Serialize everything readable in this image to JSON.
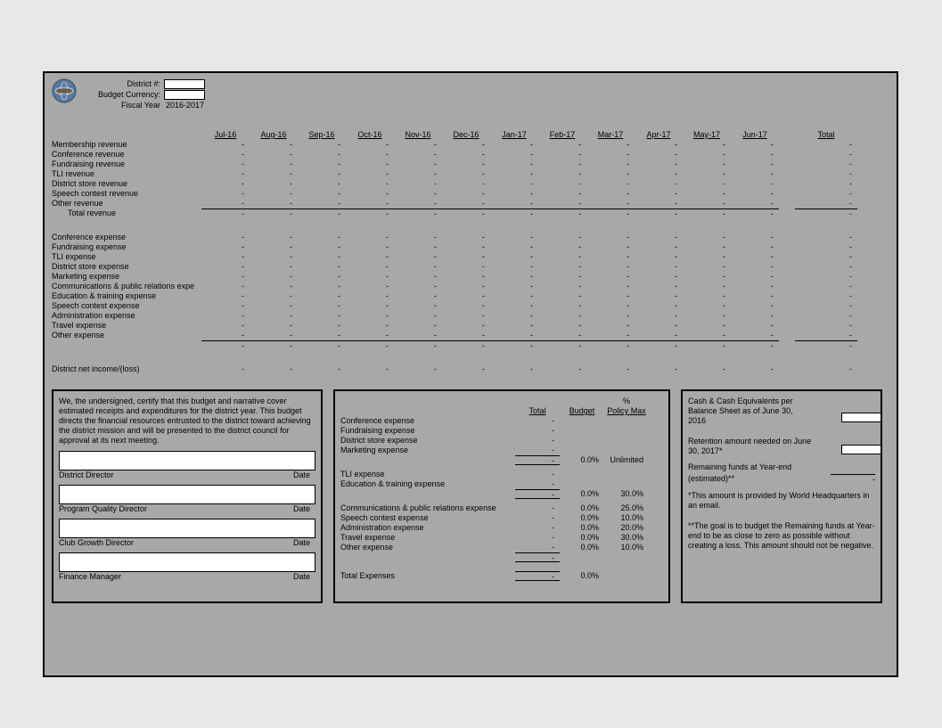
{
  "header": {
    "district_label": "District #:",
    "currency_label": "Budget Currency:",
    "fiscal_label": "Fiscal Year",
    "fiscal_value": "2016-2017"
  },
  "columns": [
    "Jul-16",
    "Aug-16",
    "Sep-16",
    "Oct-16",
    "Nov-16",
    "Dec-16",
    "Jan-17",
    "Feb-17",
    "Mar-17",
    "Apr-17",
    "May-17",
    "Jun-17"
  ],
  "total_label": "Total",
  "revenue_rows": [
    "Membership revenue",
    "Conference revenue",
    "Fundraising revenue",
    "TLI revenue",
    "District store revenue",
    "Speech contest revenue",
    "Other revenue"
  ],
  "total_revenue_label": "Total revenue",
  "expense_rows": [
    "Conference expense",
    "Fundraising expense",
    "TLI expense",
    "District store expense",
    "Marketing expense",
    "Communications & public relations expe",
    "Education & training expense",
    "Speech contest expense",
    "Administration expense",
    "Travel expense",
    "Other expense"
  ],
  "net_label": "District net income/(loss)",
  "dash": "-",
  "cert": {
    "text": "We, the undersigned, certify that this budget and narrative cover estimated receipts and expenditures for the district year.  This budget directs the financial resources entrusted to the district toward achieving the district mission and will be presented to the district council for approval at its next meeting.",
    "sigs": [
      {
        "title": "District Director",
        "date": "Date"
      },
      {
        "title": "Program Quality Director",
        "date": "Date"
      },
      {
        "title": "Club Growth Director",
        "date": "Date"
      },
      {
        "title": "Finance Manager",
        "date": "Date"
      }
    ]
  },
  "mid": {
    "pct": "%",
    "hdr_total": "Total",
    "hdr_budget": "Budget",
    "hdr_policy": "Policy Max",
    "group1": [
      "Conference expense",
      "Fundraising expense",
      "District store expense",
      "Marketing expense"
    ],
    "group1_sum": {
      "budget": "0.0%",
      "policy": "Unlimited"
    },
    "group2": [
      "TLI expense",
      "Education & training expense"
    ],
    "group2_sum": {
      "budget": "0.0%",
      "policy": "30.0%"
    },
    "group3": [
      {
        "label": "Communications & public relations expense",
        "budget": "0.0%",
        "policy": "25.0%"
      },
      {
        "label": "Speech contest expense",
        "budget": "0.0%",
        "policy": "10.0%"
      },
      {
        "label": "Administration expense",
        "budget": "0.0%",
        "policy": "20.0%"
      },
      {
        "label": "Travel expense",
        "budget": "0.0%",
        "policy": "30.0%"
      },
      {
        "label": "Other expense",
        "budget": "0.0%",
        "policy": "10.0%"
      }
    ],
    "total_label": "Total Expenses",
    "total_budget": "0.0%"
  },
  "right": {
    "line1": "Cash & Cash Equivalents per Balance Sheet as of June 30, 2016",
    "line2": "Retention amount needed on June 30, 2017*",
    "line3a": "Remaining funds at Year-end",
    "line3b": "(estimated)**",
    "note1": "*This amount is provided by World Headquarters in an email.",
    "note2": "**The goal is to budget the Remaining funds at Year-end to be as close to zero as possible without creating a loss.  This amount should not be negative.",
    "dash": "-"
  },
  "colors": {
    "page_bg": "#a8a8a8",
    "input_bg": "#ffffff",
    "border": "#000000"
  }
}
